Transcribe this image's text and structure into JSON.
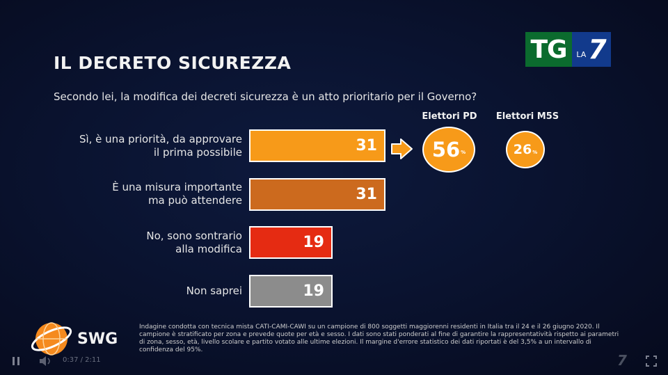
{
  "logo": {
    "tg": "TG",
    "la": "LA",
    "seven": "7"
  },
  "title": "IL DECRETO SICUREZZA",
  "question": "Secondo lei, la modifica dei decreti sicurezza è un atto prioritario per il Governo?",
  "chart_data": {
    "type": "bar",
    "orientation": "horizontal",
    "title": "IL DECRETO SICUREZZA",
    "subtitle": "Secondo lei, la modifica dei decreti sicurezza è un atto prioritario per il Governo?",
    "categories": [
      [
        "Sì, è una priorità, da approvare",
        "il prima possibile"
      ],
      [
        "È una misura importante",
        "ma può attendere"
      ],
      [
        "No, sono sontrario",
        "alla modifica"
      ],
      [
        "Non saprei"
      ]
    ],
    "values": [
      31,
      31,
      19,
      19
    ],
    "colors": [
      "#f79a19",
      "#cc6a1e",
      "#e52b12",
      "#8c8c8c"
    ],
    "xlim": [
      0,
      31
    ],
    "subgroups": [
      {
        "name": "Elettori PD",
        "value": 56,
        "unit": "%"
      },
      {
        "name": "Elettori M5S",
        "value": 26,
        "unit": "%"
      }
    ]
  },
  "swg": {
    "name": "SWG"
  },
  "note": "Indagine condotta con tecnica mista CATI-CAMI-CAWI su un campione di 800 soggetti maggiorenni residenti in Italia tra il 24 e il 26 giugno 2020. Il campione è stratificato per zona e prevede quote per età e sesso. I dati sono stati ponderati al fine di garantire la rappresentatività rispetto ai parametri di zona, sesso, età, livello scolare e partito votato alle ultime elezioni. Il margine d'errore statistico dei dati riportati è del 3,5% a un intervallo di confidenza del 95%.",
  "player": {
    "time": "0:37 / 2:11"
  }
}
